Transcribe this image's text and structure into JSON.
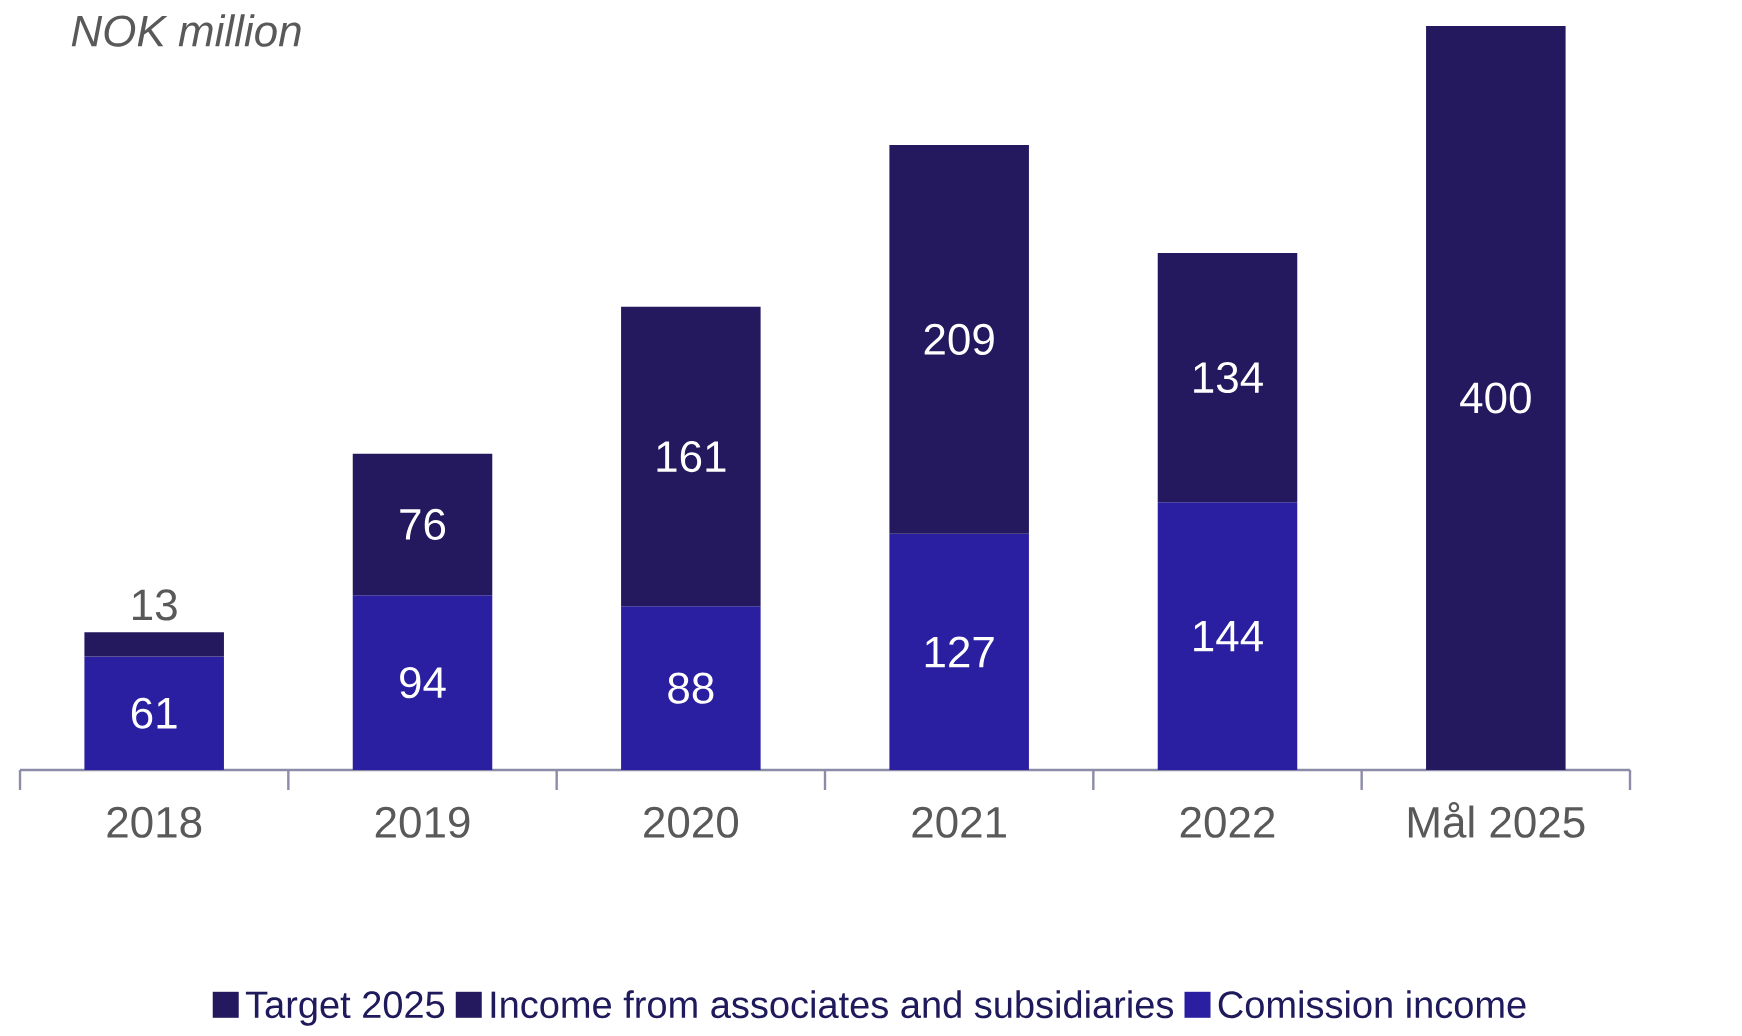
{
  "chart_data": {
    "type": "bar",
    "stacked": true,
    "ylabel": "NOK million",
    "categories": [
      "2018",
      "2019",
      "2020",
      "2021",
      "2022",
      "Mål 2025"
    ],
    "series": [
      {
        "name": "Comission income",
        "color": "#2a1fa0",
        "values": [
          61,
          94,
          88,
          127,
          144,
          null
        ]
      },
      {
        "name": "Income from associates and subsidiaries",
        "color": "#24185e",
        "values": [
          13,
          76,
          161,
          209,
          134,
          null
        ]
      },
      {
        "name": "Target 2025",
        "color": "#24185e",
        "values": [
          null,
          null,
          null,
          null,
          null,
          400
        ]
      }
    ],
    "data_labels": true,
    "legend": "bottom"
  }
}
